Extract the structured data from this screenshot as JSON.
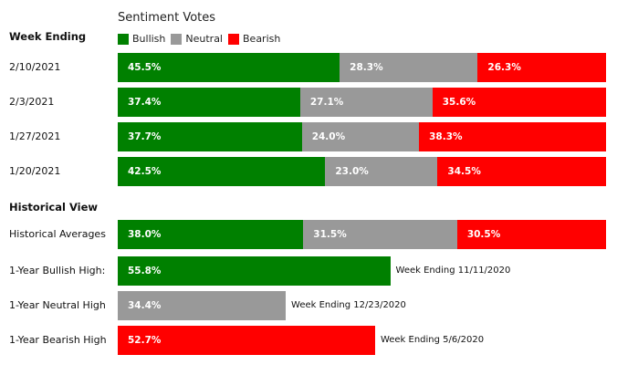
{
  "chart_data": {
    "type": "bar",
    "orientation": "horizontal",
    "stacked": true,
    "title": "Sentiment Votes",
    "legend_placement": "top-left",
    "series_legend": [
      {
        "name": "Bullish",
        "color": "#008000"
      },
      {
        "name": "Neutral",
        "color": "#999999"
      },
      {
        "name": "Bearish",
        "color": "#ff0000"
      }
    ],
    "weekly": {
      "heading": "Week Ending",
      "rows": [
        {
          "label": "2/10/2021",
          "bullish": 45.5,
          "neutral": 28.3,
          "bearish": 26.3,
          "bullish_text": "45.5%",
          "neutral_text": "28.3%",
          "bearish_text": "26.3%"
        },
        {
          "label": "2/3/2021",
          "bullish": 37.4,
          "neutral": 27.1,
          "bearish": 35.6,
          "bullish_text": "37.4%",
          "neutral_text": "27.1%",
          "bearish_text": "35.6%"
        },
        {
          "label": "1/27/2021",
          "bullish": 37.7,
          "neutral": 24.0,
          "bearish": 38.3,
          "bullish_text": "37.7%",
          "neutral_text": "24.0%",
          "bearish_text": "38.3%"
        },
        {
          "label": "1/20/2021",
          "bullish": 42.5,
          "neutral": 23.0,
          "bearish": 34.5,
          "bullish_text": "42.5%",
          "neutral_text": "23.0%",
          "bearish_text": "34.5%"
        }
      ]
    },
    "historical": {
      "heading": "Historical View",
      "averages": {
        "label": "Historical Averages",
        "bullish": 38.0,
        "neutral": 31.5,
        "bearish": 30.5,
        "bullish_text": "38.0%",
        "neutral_text": "31.5%",
        "bearish_text": "30.5%"
      },
      "highs": [
        {
          "label": "1-Year Bullish High:",
          "kind": "bullish",
          "value": 55.8,
          "value_text": "55.8%",
          "note": "Week Ending 11/11/2020"
        },
        {
          "label": "1-Year Neutral High",
          "kind": "neutral",
          "value": 34.4,
          "value_text": "34.4%",
          "note": "Week Ending 12/23/2020"
        },
        {
          "label": "1-Year Bearish High",
          "kind": "bearish",
          "value": 52.7,
          "value_text": "52.7%",
          "note": "Week Ending 5/6/2020"
        }
      ]
    },
    "xlim": [
      0,
      100
    ]
  }
}
